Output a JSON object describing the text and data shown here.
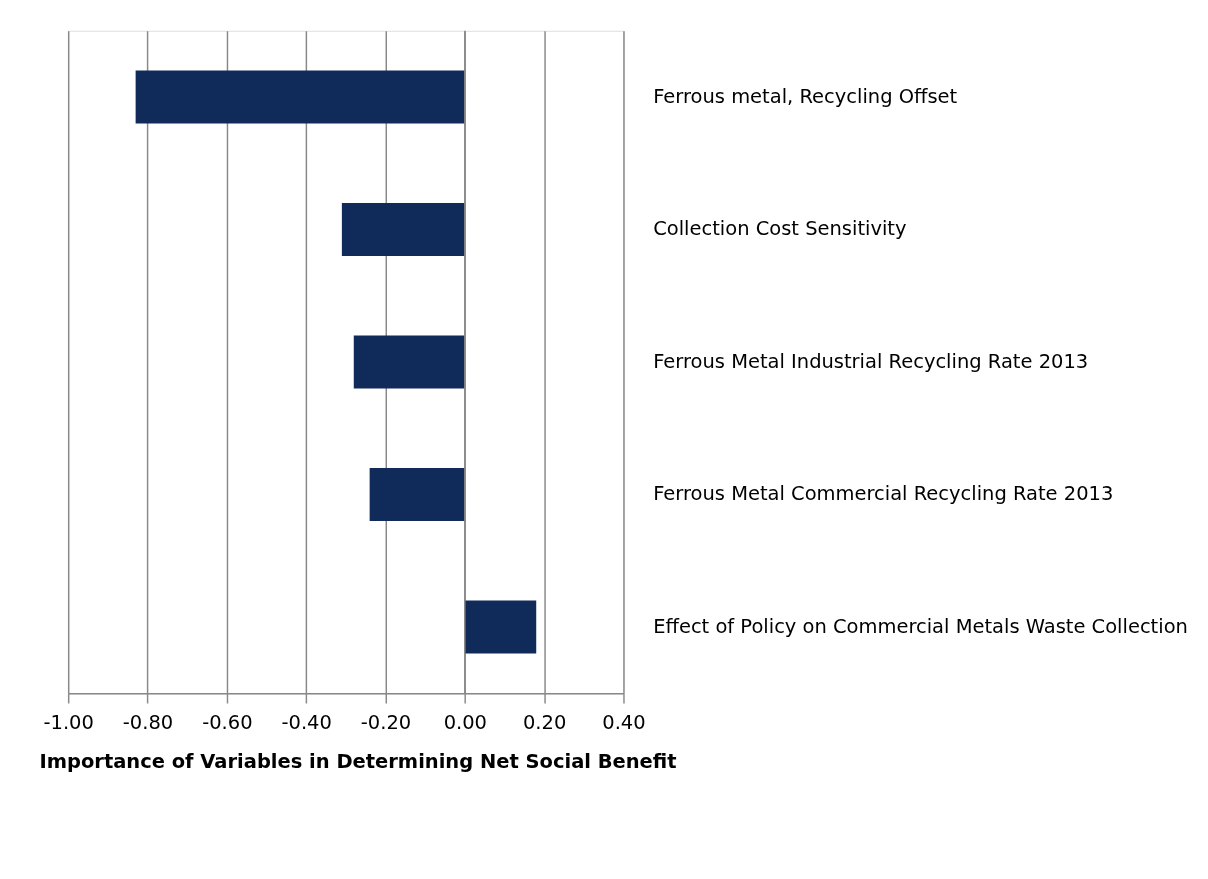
{
  "chart_data": {
    "type": "bar",
    "orientation": "horizontal",
    "xlabel": "Importance of Variables in Determining Net Social Benefit",
    "categories": [
      "Ferrous metal, Recycling Offset",
      "Collection Cost Sensitivity",
      "Ferrous Metal Industrial Recycling Rate 2013",
      "Ferrous Metal Commercial Recycling Rate 2013",
      "Effect of Policy on Commercial Metals Waste Collection"
    ],
    "values": [
      -0.83,
      -0.31,
      -0.28,
      -0.24,
      0.18
    ],
    "color": "#102a5a",
    "xlim": [
      -1.0,
      0.4
    ],
    "xticks": [
      {
        "value": -1.0,
        "label": "-1.00"
      },
      {
        "value": -0.8,
        "label": "-0.80"
      },
      {
        "value": -0.6,
        "label": "-0.60"
      },
      {
        "value": -0.4,
        "label": "-0.40"
      },
      {
        "value": -0.2,
        "label": "-0.20"
      },
      {
        "value": 0.0,
        "label": "0.00"
      },
      {
        "value": 0.2,
        "label": "0.20"
      },
      {
        "value": 0.4,
        "label": "0.40"
      }
    ],
    "grid": "x"
  }
}
